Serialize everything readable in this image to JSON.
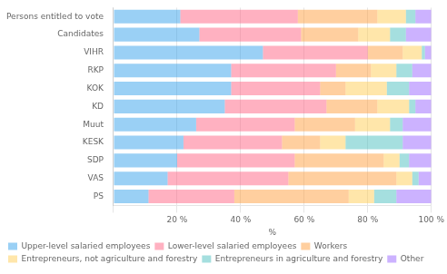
{
  "chart_data": {
    "type": "bar",
    "orientation": "horizontal",
    "stacked": true,
    "categories": [
      "Persons entitled to vote",
      "Candidates",
      "VIHR",
      "RKP",
      "KOK",
      "KD",
      "Muut",
      "KESK",
      "SDP",
      "VAS",
      "PS"
    ],
    "series": [
      {
        "name": "Upper-level salaried employees",
        "values": [
          21,
          27,
          47,
          37,
          37,
          35,
          26,
          22,
          20,
          17,
          11
        ]
      },
      {
        "name": "Lower-level salaried employees",
        "values": [
          37,
          32,
          33,
          33,
          28,
          32,
          31,
          31,
          37,
          38,
          27
        ]
      },
      {
        "name": "Workers",
        "values": [
          25,
          18,
          11,
          11,
          8,
          16,
          19,
          12,
          28,
          34,
          36
        ]
      },
      {
        "name": "Entrepreneurs, not agriculture and forestry",
        "values": [
          9,
          10,
          6,
          8,
          13,
          10,
          11,
          8,
          5,
          5,
          8
        ]
      },
      {
        "name": "Entrepreneurs in agriculture and forestry",
        "values": [
          3,
          5,
          1,
          5,
          7,
          2,
          4,
          18,
          3,
          2,
          7
        ]
      },
      {
        "name": "Other",
        "values": [
          5,
          8,
          2,
          6,
          7,
          5,
          9,
          9,
          7,
          4,
          11
        ]
      }
    ],
    "xlabel": "%",
    "xlim": [
      0,
      100
    ],
    "xticks": [
      {
        "value": 0,
        "label": ""
      },
      {
        "value": 20,
        "label": "20 %"
      },
      {
        "value": 40,
        "label": "40 %"
      },
      {
        "value": 60,
        "label": "60 %"
      },
      {
        "value": 80,
        "label": "80 %"
      },
      {
        "value": 100,
        "label": "100 %"
      }
    ],
    "grid": true,
    "legend": "bottom"
  }
}
